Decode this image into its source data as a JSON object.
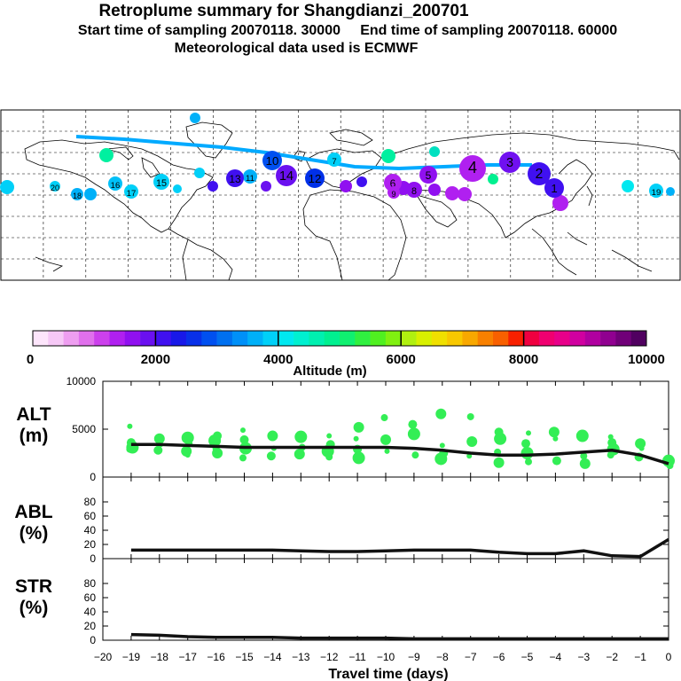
{
  "header": {
    "title": "Retroplume summary for Shangdianzi_200701",
    "subtitle": "Start time of sampling 20070118. 30000     End time of sampling 20070118. 60000",
    "met": "Meteorological data used is ECMWF"
  },
  "colors": {
    "plume_green": "#33ee55",
    "median_line": "#111111",
    "track": "#00aaff"
  },
  "colorbar": {
    "label": "Altitude  (m)",
    "tick_labels": [
      "0",
      "2000",
      "4000",
      "6000",
      "8000",
      "10000"
    ],
    "colors": [
      "#fde5fb",
      "#f6c8f6",
      "#ee9ef0",
      "#e070ec",
      "#cc40ec",
      "#b020f0",
      "#9010f0",
      "#6a10f0",
      "#4010f0",
      "#1818e8",
      "#0830e8",
      "#0050f0",
      "#0070f0",
      "#0090f8",
      "#00b0f8",
      "#00d0f8",
      "#00e8f0",
      "#00f0d0",
      "#00f0b0",
      "#00f090",
      "#10f070",
      "#30f040",
      "#50f020",
      "#80f010",
      "#b0f010",
      "#d8f000",
      "#f0e000",
      "#f8c800",
      "#f8a800",
      "#f88000",
      "#f86000",
      "#f82000",
      "#f00040",
      "#f00070",
      "#e8008a",
      "#d000a0",
      "#b000a0",
      "#900090",
      "#700078",
      "#500060"
    ]
  },
  "map": {
    "clusters": [
      {
        "label": "1",
        "color": "#4010f0"
      },
      {
        "label": "2",
        "color": "#4010f0"
      },
      {
        "label": "3",
        "color": "#7010f0"
      },
      {
        "label": "4",
        "color": "#b020f0"
      },
      {
        "label": "5",
        "color": "#9010f0"
      },
      {
        "label": "6",
        "color": "#b020f0"
      },
      {
        "label": "7",
        "color": "#00d0f8"
      },
      {
        "label": "8",
        "color": "#9010f0"
      },
      {
        "label": "9",
        "color": "#b020f0"
      },
      {
        "label": "10",
        "color": "#0050f0"
      },
      {
        "label": "11",
        "color": "#00b0f8"
      },
      {
        "label": "12",
        "color": "#0030e8"
      },
      {
        "label": "13",
        "color": "#4010f0"
      },
      {
        "label": "14",
        "color": "#6a10f0"
      },
      {
        "label": "15",
        "color": "#00d0f8"
      },
      {
        "label": "16",
        "color": "#00c0f8"
      },
      {
        "label": "17",
        "color": "#00d0f8"
      },
      {
        "label": "18",
        "color": "#00b0f8"
      },
      {
        "label": "19",
        "color": "#00d0f8"
      },
      {
        "label": "20",
        "color": "#00d0f8"
      }
    ]
  },
  "chart_data": [
    {
      "type": "scatter",
      "panel": "ALT",
      "ylabel": "ALT\n(m)",
      "ylabel_lines": [
        "ALT",
        "(m)"
      ],
      "ylim": [
        0,
        10000
      ],
      "yticks": [
        "10000",
        "5000",
        "0"
      ],
      "xlim": [
        -20,
        0
      ],
      "median_line": {
        "x": [
          -19,
          -18,
          -17,
          -16,
          -15,
          -14,
          -13,
          -12,
          -11,
          -10,
          -9,
          -8,
          -7,
          -6,
          -5,
          -4,
          -3,
          -2,
          -1,
          0
        ],
        "y": [
          3400,
          3400,
          3300,
          3200,
          3100,
          3100,
          3100,
          3100,
          3100,
          3100,
          3000,
          2800,
          2500,
          2300,
          2300,
          2400,
          2600,
          2800,
          2300,
          1400
        ]
      },
      "cluster_points": [
        {
          "x": -19,
          "y": 5300
        },
        {
          "x": -19,
          "y": 3600
        },
        {
          "x": -19,
          "y": 3100
        },
        {
          "x": -19,
          "y": 2900
        },
        {
          "x": -18,
          "y": 4000
        },
        {
          "x": -18,
          "y": 3400
        },
        {
          "x": -18,
          "y": 2800
        },
        {
          "x": -17,
          "y": 4100
        },
        {
          "x": -17,
          "y": 3500
        },
        {
          "x": -17,
          "y": 2700
        },
        {
          "x": -17,
          "y": 2300
        },
        {
          "x": -16,
          "y": 4300
        },
        {
          "x": -16,
          "y": 3800
        },
        {
          "x": -16,
          "y": 3000
        },
        {
          "x": -16,
          "y": 2500
        },
        {
          "x": -15,
          "y": 4900
        },
        {
          "x": -15,
          "y": 3900
        },
        {
          "x": -15,
          "y": 3000
        },
        {
          "x": -15,
          "y": 2000
        },
        {
          "x": -14,
          "y": 4300
        },
        {
          "x": -14,
          "y": 3000
        },
        {
          "x": -14,
          "y": 2200
        },
        {
          "x": -13,
          "y": 4200
        },
        {
          "x": -13,
          "y": 3100
        },
        {
          "x": -13,
          "y": 2400
        },
        {
          "x": -12,
          "y": 4300
        },
        {
          "x": -12,
          "y": 3400
        },
        {
          "x": -12,
          "y": 2700
        },
        {
          "x": -12,
          "y": 2100
        },
        {
          "x": -11,
          "y": 5200
        },
        {
          "x": -11,
          "y": 4000
        },
        {
          "x": -11,
          "y": 2900
        },
        {
          "x": -11,
          "y": 2000
        },
        {
          "x": -10,
          "y": 6200
        },
        {
          "x": -10,
          "y": 3900
        },
        {
          "x": -10,
          "y": 2700
        },
        {
          "x": -9,
          "y": 5500
        },
        {
          "x": -9,
          "y": 4500
        },
        {
          "x": -9,
          "y": 2300
        },
        {
          "x": -8,
          "y": 6600
        },
        {
          "x": -8,
          "y": 3300
        },
        {
          "x": -8,
          "y": 2500
        },
        {
          "x": -8,
          "y": 1900
        },
        {
          "x": -7,
          "y": 6300
        },
        {
          "x": -7,
          "y": 3700
        },
        {
          "x": -7,
          "y": 2200
        },
        {
          "x": -6,
          "y": 4700
        },
        {
          "x": -6,
          "y": 4000
        },
        {
          "x": -6,
          "y": 2600
        },
        {
          "x": -6,
          "y": 1500
        },
        {
          "x": -5,
          "y": 4600
        },
        {
          "x": -5,
          "y": 3500
        },
        {
          "x": -5,
          "y": 2500
        },
        {
          "x": -5,
          "y": 1600
        },
        {
          "x": -4,
          "y": 4700
        },
        {
          "x": -4,
          "y": 4000
        },
        {
          "x": -4,
          "y": 1700
        },
        {
          "x": -3,
          "y": 4300
        },
        {
          "x": -3,
          "y": 2200
        },
        {
          "x": -3,
          "y": 1400
        },
        {
          "x": -2,
          "y": 4200
        },
        {
          "x": -2,
          "y": 3600
        },
        {
          "x": -2,
          "y": 2900
        },
        {
          "x": -2,
          "y": 2300
        },
        {
          "x": -1,
          "y": 3500
        },
        {
          "x": -1,
          "y": 3000
        },
        {
          "x": -1,
          "y": 2100
        },
        {
          "x": 0,
          "y": 1700
        },
        {
          "x": 0,
          "y": 1200
        }
      ]
    },
    {
      "type": "line",
      "panel": "ABL",
      "ylabel_lines": [
        "ABL",
        "(%)"
      ],
      "ylim": [
        0,
        100
      ],
      "yticks": [
        "80",
        "60",
        "40",
        "20",
        "0"
      ],
      "x": [
        -19,
        -18,
        -17,
        -16,
        -15,
        -14,
        -13,
        -12,
        -11,
        -10,
        -9,
        -8,
        -7,
        -6,
        -5,
        -4,
        -3,
        -2,
        -1,
        0
      ],
      "y": [
        12,
        12,
        12,
        12,
        12,
        12,
        11,
        10,
        10,
        11,
        12,
        12,
        12,
        9,
        7,
        7,
        11,
        4,
        3,
        27
      ]
    },
    {
      "type": "line",
      "panel": "STR",
      "ylabel_lines": [
        "STR",
        "(%)"
      ],
      "ylim": [
        0,
        100
      ],
      "yticks": [
        "80",
        "60",
        "40",
        "20",
        "0"
      ],
      "x": [
        -19,
        -18,
        -17,
        -16,
        -15,
        -14,
        -13,
        -12,
        -11,
        -10,
        -9,
        -8,
        -7,
        -6,
        -5,
        -4,
        -3,
        -2,
        -1,
        0
      ],
      "y": [
        8,
        7,
        5,
        4,
        4,
        4,
        3,
        3,
        3,
        3,
        2,
        2,
        2,
        2,
        2,
        2,
        2,
        2,
        2,
        2
      ]
    }
  ],
  "xaxis": {
    "label": "Travel time (days)",
    "ticks": [
      "−20",
      "−19",
      "−18",
      "−17",
      "−16",
      "−15",
      "−14",
      "−13",
      "−12",
      "−11",
      "−10",
      "−9",
      "−8",
      "−7",
      "−6",
      "−5",
      "−4",
      "−3",
      "−2",
      "−1",
      "0"
    ]
  }
}
